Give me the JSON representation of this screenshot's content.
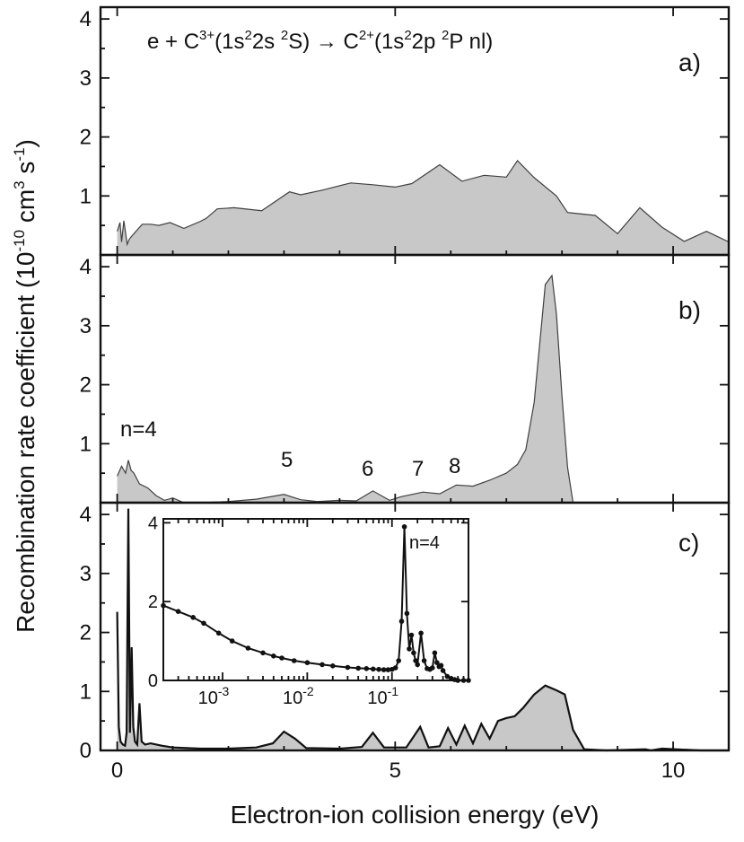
{
  "colors": {
    "fill": "#c8c8c8",
    "line": "#404040",
    "dark": "#111111"
  },
  "labels": {
    "ylabel_main": "Recombination rate coefficient (",
    "ylabel_sup1": "-10",
    "ylabel_unit": " cm",
    "ylabel_sup2": "3",
    "ylabel_s": " s",
    "ylabel_sup3": "-1",
    "ylabel_end": ")",
    "ylabel_ten": "10",
    "xlabel": "Electron-ion collision energy (eV)",
    "title_parts": [
      "e + C",
      "3+",
      "(1s",
      "2",
      "2s ",
      "2",
      "S) → C",
      "2+",
      "(1s",
      "2",
      "2p ",
      "2",
      "P nl)"
    ]
  },
  "chart_data": [
    {
      "panel": "a)",
      "type": "area",
      "xlim": [
        -0.3,
        11.0
      ],
      "ylim": [
        0,
        4.2
      ],
      "xticks": [
        0,
        5,
        10
      ],
      "yticks": [
        1,
        2,
        3,
        4
      ],
      "x": [
        0.0,
        0.05,
        0.08,
        0.12,
        0.18,
        0.22,
        0.3,
        0.45,
        0.6,
        0.75,
        0.95,
        1.2,
        1.5,
        1.6,
        1.8,
        2.1,
        2.6,
        3.1,
        3.3,
        3.7,
        4.2,
        4.6,
        5.0,
        5.3,
        5.8,
        6.2,
        6.6,
        7.0,
        7.2,
        7.5,
        7.9,
        8.1,
        8.6,
        9.0,
        9.4,
        9.8,
        10.2,
        10.6,
        11.0
      ],
      "values": [
        0.4,
        0.55,
        0.22,
        0.58,
        0.18,
        0.27,
        0.36,
        0.52,
        0.52,
        0.5,
        0.55,
        0.45,
        0.57,
        0.62,
        0.78,
        0.8,
        0.75,
        1.07,
        1.02,
        1.1,
        1.22,
        1.19,
        1.15,
        1.21,
        1.53,
        1.25,
        1.35,
        1.32,
        1.6,
        1.31,
        1.0,
        0.72,
        0.67,
        0.36,
        0.8,
        0.47,
        0.23,
        0.4,
        0.22
      ]
    },
    {
      "panel": "b)",
      "type": "area",
      "xlim": [
        -0.3,
        11.0
      ],
      "ylim": [
        0,
        4.2
      ],
      "xticks": [
        0,
        5,
        10
      ],
      "yticks": [
        1,
        2,
        3,
        4
      ],
      "annotations": [
        "n=4",
        "5",
        "6",
        "7",
        "8"
      ],
      "x": [
        0.0,
        0.08,
        0.15,
        0.2,
        0.25,
        0.3,
        0.4,
        0.55,
        0.7,
        0.85,
        1.0,
        1.2,
        1.5,
        2.0,
        2.5,
        3.0,
        3.3,
        3.6,
        4.0,
        4.3,
        4.6,
        4.9,
        5.1,
        5.5,
        5.8,
        6.1,
        6.4,
        6.7,
        7.0,
        7.2,
        7.35,
        7.5,
        7.6,
        7.7,
        7.82,
        7.9,
        8.0,
        8.1,
        8.2,
        8.4,
        9.0,
        11.0
      ],
      "values": [
        0.45,
        0.62,
        0.5,
        0.72,
        0.55,
        0.5,
        0.32,
        0.25,
        0.12,
        0.04,
        0.08,
        0.0,
        0.0,
        0.02,
        0.06,
        0.14,
        0.05,
        0.02,
        0.04,
        0.03,
        0.2,
        0.04,
        0.1,
        0.18,
        0.15,
        0.3,
        0.28,
        0.38,
        0.5,
        0.65,
        0.9,
        1.7,
        2.7,
        3.7,
        3.85,
        3.2,
        1.8,
        0.6,
        0.0,
        0.0,
        0.0,
        0.0
      ]
    },
    {
      "panel": "c)",
      "type": "area",
      "xlim": [
        -0.3,
        11.0
      ],
      "ylim": [
        0,
        4.2
      ],
      "xticks": [
        0,
        5,
        10
      ],
      "yticks": [
        0,
        1,
        2,
        3,
        4
      ],
      "x": [
        0.0,
        0.03,
        0.06,
        0.1,
        0.14,
        0.17,
        0.2,
        0.23,
        0.26,
        0.29,
        0.32,
        0.36,
        0.4,
        0.44,
        0.5,
        0.6,
        0.8,
        1.0,
        1.5,
        2.0,
        2.5,
        2.8,
        3.0,
        3.2,
        3.4,
        4.0,
        4.4,
        4.6,
        4.8,
        5.2,
        5.45,
        5.6,
        5.8,
        5.95,
        6.1,
        6.25,
        6.4,
        6.55,
        6.7,
        6.85,
        7.0,
        7.15,
        7.3,
        7.5,
        7.7,
        7.9,
        8.05,
        8.2,
        8.4,
        8.8,
        9.5,
        9.6,
        9.8,
        10.5,
        11.0
      ],
      "values": [
        2.35,
        0.4,
        0.15,
        0.1,
        0.08,
        0.3,
        4.1,
        0.3,
        1.75,
        0.4,
        0.15,
        0.1,
        0.8,
        0.15,
        0.1,
        0.12,
        0.08,
        0.05,
        0.03,
        0.03,
        0.05,
        0.12,
        0.32,
        0.2,
        0.04,
        0.03,
        0.06,
        0.3,
        0.05,
        0.05,
        0.4,
        0.05,
        0.07,
        0.38,
        0.1,
        0.42,
        0.12,
        0.45,
        0.2,
        0.5,
        0.55,
        0.58,
        0.72,
        0.95,
        1.1,
        1.02,
        0.95,
        0.35,
        0.02,
        0.0,
        0.02,
        0.0,
        0.03,
        0.0,
        0.0
      ]
    },
    {
      "panel": "inset",
      "type": "line",
      "xscale": "log",
      "xlim": [
        0.0002,
        0.8
      ],
      "ylim": [
        0,
        4.1
      ],
      "xticks": [
        0.001,
        0.01,
        0.1
      ],
      "xtick_labels": [
        [
          "10",
          "-3"
        ],
        [
          "10",
          "-2"
        ],
        [
          "10",
          "-1"
        ]
      ],
      "yticks": [
        0,
        2,
        4
      ],
      "annotations": [
        "n=4"
      ],
      "x": [
        0.0002,
        0.0003,
        0.00045,
        0.0006,
        0.0009,
        0.0013,
        0.002,
        0.003,
        0.004,
        0.005,
        0.007,
        0.01,
        0.015,
        0.02,
        0.03,
        0.04,
        0.05,
        0.06,
        0.07,
        0.08,
        0.09,
        0.1,
        0.11,
        0.12,
        0.13,
        0.14,
        0.15,
        0.16,
        0.17,
        0.18,
        0.19,
        0.2,
        0.22,
        0.24,
        0.26,
        0.28,
        0.3,
        0.32,
        0.34,
        0.36,
        0.38,
        0.4,
        0.45,
        0.5,
        0.55,
        0.6,
        0.7,
        0.8
      ],
      "values": [
        1.9,
        1.75,
        1.6,
        1.45,
        1.2,
        1.0,
        0.82,
        0.7,
        0.62,
        0.57,
        0.5,
        0.45,
        0.4,
        0.37,
        0.33,
        0.31,
        0.3,
        0.29,
        0.28,
        0.27,
        0.27,
        0.28,
        0.32,
        0.5,
        1.5,
        3.9,
        1.7,
        0.8,
        1.15,
        0.7,
        0.5,
        0.4,
        1.2,
        0.5,
        0.3,
        0.28,
        0.32,
        0.7,
        0.45,
        0.35,
        0.38,
        0.25,
        0.1,
        0.05,
        0.02,
        0.0,
        0.0,
        0.0
      ]
    }
  ]
}
